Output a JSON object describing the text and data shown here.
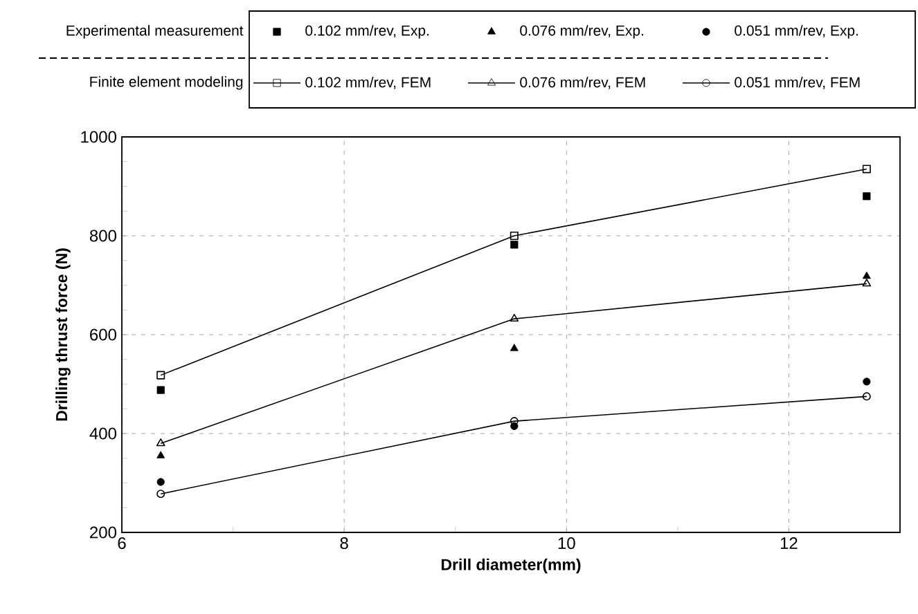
{
  "chart_data": {
    "type": "line",
    "xlabel": "Drill diameter(mm)",
    "ylabel": "Drilling thrust force (N)",
    "annotations": [
      "Experimental measurement",
      "Finite element modeling"
    ],
    "xlim": [
      6,
      13
    ],
    "ylim": [
      200,
      1000
    ],
    "xticks": [
      6,
      {
        "value": 7,
        "label": null
      },
      8,
      {
        "value": 9,
        "label": null
      },
      10,
      {
        "value": 11,
        "label": null
      },
      12
    ],
    "yticks": [
      200,
      {
        "value": 250,
        "label": null
      },
      {
        "value": 300,
        "label": null
      },
      {
        "value": 350,
        "label": null
      },
      400,
      {
        "value": 450,
        "label": null
      },
      {
        "value": 500,
        "label": null
      },
      {
        "value": 550,
        "label": null
      },
      600,
      {
        "value": 650,
        "label": null
      },
      {
        "value": 700,
        "label": null
      },
      {
        "value": 750,
        "label": null
      },
      800,
      {
        "value": 850,
        "label": null
      },
      {
        "value": 900,
        "label": null
      },
      {
        "value": 950,
        "label": null
      },
      1000
    ],
    "grid": true,
    "legend": "top",
    "x": [
      6.35,
      9.53,
      12.7
    ],
    "series": [
      {
        "name": "0.102 mm/rev, Exp.",
        "type": "scatter",
        "marker": "square",
        "color": "#000000",
        "values": [
          488,
          782,
          880
        ]
      },
      {
        "name": "0.076 mm/rev, Exp.",
        "type": "scatter",
        "marker": "triangle",
        "color": "#000000",
        "values": [
          355,
          572,
          718
        ]
      },
      {
        "name": "0.051 mm/rev, Exp.",
        "type": "scatter",
        "marker": "circle",
        "color": "#000000",
        "values": [
          302,
          415,
          505
        ]
      },
      {
        "name": "0.102 mm/rev, FEM",
        "marker": "square",
        "color": "#000000",
        "values": [
          518,
          800,
          935
        ]
      },
      {
        "name": "0.076 mm/rev, FEM",
        "marker": "triangle",
        "color": "#000000",
        "values": [
          380,
          632,
          703
        ]
      },
      {
        "name": "0.051 mm/rev, FEM",
        "marker": "circle",
        "color": "#000000",
        "values": [
          278,
          425,
          475
        ]
      }
    ]
  }
}
